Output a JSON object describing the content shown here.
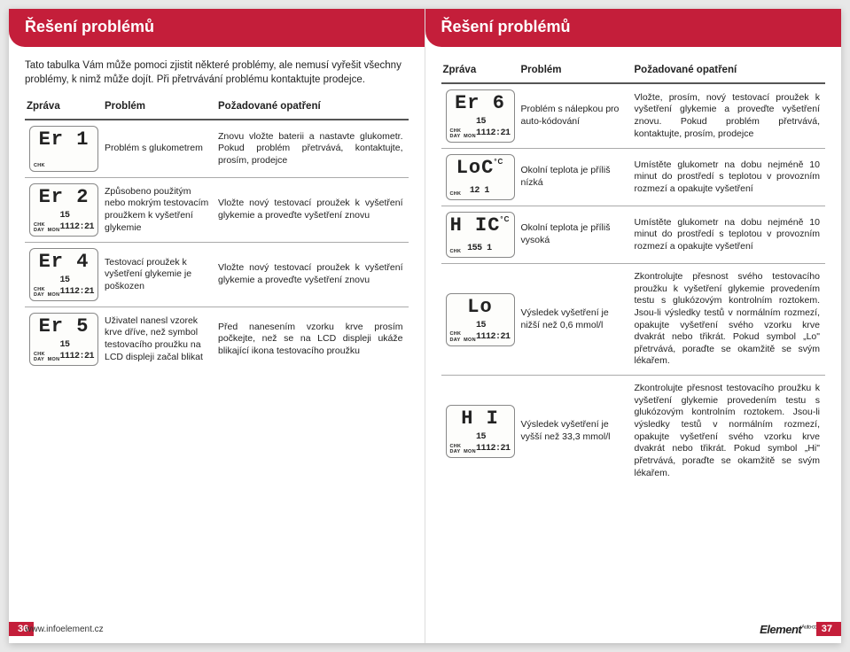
{
  "header": "Řešení problémů",
  "intro": "Tato tabulka Vám může pomoci zjistit některé problémy, ale nemusí vyřešit všechny problémy, k nimž může dojít. Při přetrvávání problému kontaktujte prodejce.",
  "columns": {
    "message": "Zpráva",
    "problem": "Problém",
    "action": "Požadované opatření"
  },
  "lcd_common": {
    "chk": "CHK",
    "day": "DAY",
    "mon": "MON",
    "date": "15 11",
    "time": "12:21",
    "deg": "°C"
  },
  "left_rows": [
    {
      "code": "Er 1",
      "show_datetime": false,
      "problem": "Problém s glukometrem",
      "action": "Znovu vložte baterii a nastavte glukometr. Pokud problém přetrvává, kontaktujte, prosím, prodejce"
    },
    {
      "code": "Er 2",
      "show_datetime": true,
      "problem": "Způsobeno použitým nebo mokrým testovacím proužkem k vyšetření glykemie",
      "action": "Vložte nový testovací proužek k vyšetření glykemie a proveďte vyšetření znovu"
    },
    {
      "code": "Er 4",
      "show_datetime": true,
      "problem": "Testovací proužek k vyšetření glykemie je poškozen",
      "action": "Vložte nový testovací proužek k vyšetření glykemie a proveďte vyšetření znovu"
    },
    {
      "code": "Er 5",
      "show_datetime": true,
      "problem": "Uživatel nanesl vzorek krve dříve, než symbol testovacího proužku na LCD displeji začal blikat",
      "action": "Před nanesením vzorku krve prosím počkejte, než se na LCD displeji ukáže blikající ikona testovacího proužku"
    }
  ],
  "right_rows": [
    {
      "code": "Er 6",
      "show_datetime": true,
      "problem": "Problém s nálepkou pro auto-kódování",
      "action": "Vložte, prosím, nový testovací proužek k vyšetření glykemie a proveďte vyšetření znovu. Pokud problém přetrvává, kontaktujte, prosím, prodejce"
    },
    {
      "code": "LoC",
      "show_datetime": false,
      "show_deg": true,
      "temp": "12 1",
      "problem": "Okolní teplota je příliš nízká",
      "action": "Umístěte glukometr na dobu nejméně 10 minut do prostředí s teplotou v provozním rozmezí a opakujte vyšetření"
    },
    {
      "code": "H IC",
      "show_datetime": false,
      "show_deg": true,
      "temp": "155 1",
      "problem": "Okolní teplota je příliš vysoká",
      "action": "Umístěte glukometr na dobu nejméně 10 minut do prostředí s teplotou v provozním rozmezí a opakujte vyšetření"
    },
    {
      "code": "Lo",
      "show_datetime": true,
      "problem": "Výsledek vyšetření je nižší než 0,6 mmol/l",
      "action": "Zkontrolujte přesnost svého testovacího proužku k vyšetření glykemie provedením testu s glukózovým kontrolním roztokem. Jsou-li výsledky testů v normálním rozmezí, opakujte vyšetření svého vzorku krve dvakrát nebo třikrát. Pokud symbol „Lo\" přetrvává, poraďte se okamžitě se svým lékařem."
    },
    {
      "code": "H I",
      "show_datetime": true,
      "problem": "Výsledek vyšetření je vyšší než 33,3 mmol/l",
      "action": "Zkontrolujte přesnost testovacího proužku k vyšetření glykemie provedením testu s glukózovým kontrolním roztokem. Jsou-li výsledky testů v normálním rozmezí, opakujte vyšetření svého vzorku krve dvakrát nebo třikrát. Pokud symbol „Hi\" přetrvává, poraďte se okamžitě se svým lékařem."
    }
  ],
  "footer": {
    "left_page": "36",
    "right_page": "37",
    "website": "www.infoelement.cz",
    "brand": "Element",
    "brand_sub": "Auto-coding"
  }
}
